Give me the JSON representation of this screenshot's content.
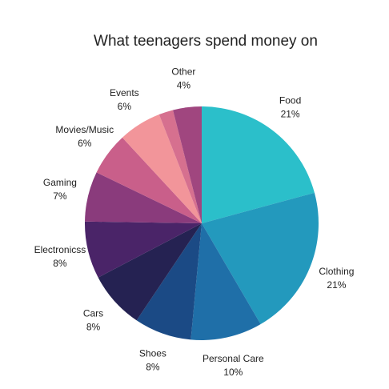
{
  "chart_data": {
    "type": "pie",
    "title": "What teenagers spend money on",
    "categories": [
      "Food",
      "Clothing",
      "Personal Care",
      "Shoes",
      "Cars",
      "Electronicss",
      "Gaming",
      "Movies/Music",
      "Events",
      null,
      "Other"
    ],
    "values": [
      21,
      21,
      10,
      8,
      8,
      8,
      7,
      6,
      6,
      2,
      4
    ],
    "value_labels": [
      "21%",
      "21%",
      "10%",
      "8%",
      "8%",
      "8%",
      "7%",
      "6%",
      "6%",
      null,
      "4%"
    ],
    "colors": [
      "#2bbfca",
      "#2399bd",
      "#1f6fa8",
      "#1b4a85",
      "#252252",
      "#4a2468",
      "#8a3b7c",
      "#c95f8a",
      "#f2959a",
      "#d6708f",
      "#a0467f"
    ]
  }
}
